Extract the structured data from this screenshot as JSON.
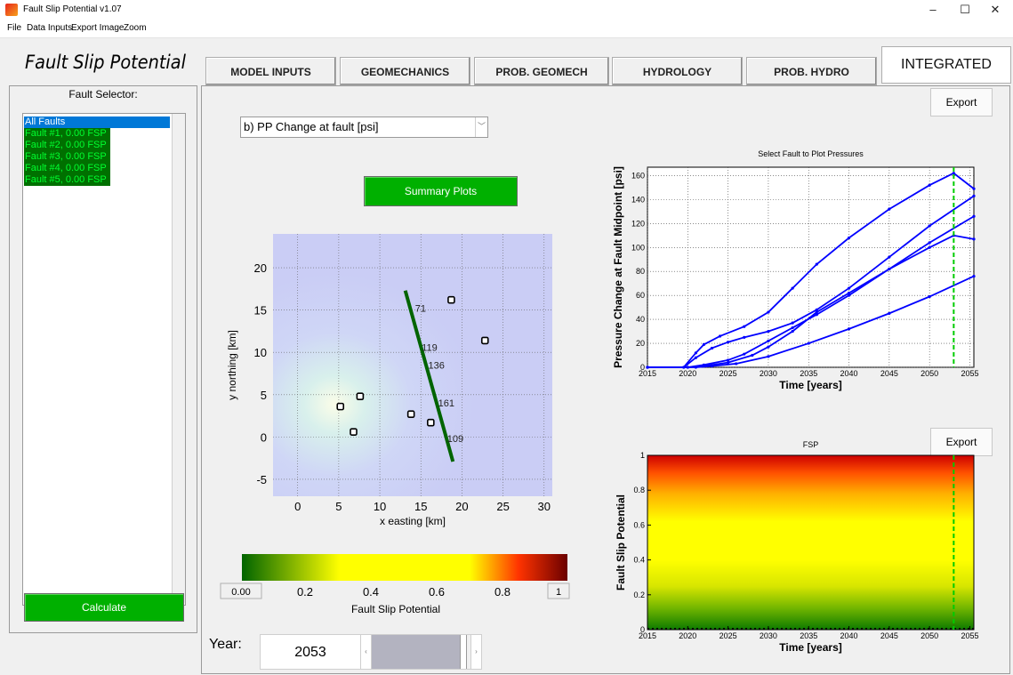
{
  "window": {
    "title": "Fault Slip Potential v1.07",
    "minimize": "–",
    "maximize": "☐",
    "close": "✕"
  },
  "menu": [
    "File",
    "Data Inputs",
    "Export Image",
    "Zoom"
  ],
  "app_title": "Fault Slip Potential",
  "tabs": [
    "MODEL INPUTS",
    "GEOMECHANICS",
    "PROB. GEOMECH",
    "HYDROLOGY",
    "PROB. HYDRO",
    "INTEGRATED"
  ],
  "fault_selector": {
    "title": "Fault Selector:",
    "items": [
      "All Faults",
      "Fault #1, 0.00 FSP",
      "Fault #2, 0.00 FSP",
      "Fault #3, 0.00 FSP",
      "Fault #4, 0.00 FSP",
      "Fault #5, 0.00 FSP"
    ],
    "selected": "All Faults"
  },
  "calculate_label": "Calculate",
  "dropdown": {
    "value": "b) PP Change at fault [psi]"
  },
  "summary_plots_label": "Summary Plots",
  "export_label": "Export",
  "year": {
    "label": "Year:",
    "value": "2053",
    "slider_fraction": 0.96
  },
  "colors": {
    "green_button": "#00b000",
    "selection": "#0078d7",
    "fault_item_bg": "#007000",
    "plot_line": "#0000ff",
    "marker_line": "#00cc00",
    "fault_line": "#006400"
  },
  "chart_data": [
    {
      "type": "scatter",
      "name": "map",
      "xlabel": "x easting [km]",
      "ylabel": "y northing [km]",
      "xlim": [
        -3,
        31
      ],
      "ylim": [
        -7,
        24
      ],
      "xticks": [
        0,
        5,
        10,
        15,
        20,
        25,
        30
      ],
      "yticks": [
        -5,
        0,
        5,
        10,
        15,
        20
      ],
      "wells": [
        [
          5.2,
          3.6
        ],
        [
          7.6,
          4.8
        ],
        [
          6.8,
          0.6
        ],
        [
          13.8,
          2.7
        ],
        [
          16.2,
          1.7
        ],
        [
          18.7,
          16.2
        ],
        [
          22.8,
          11.4
        ]
      ],
      "fault": [
        [
          13.1,
          17.3
        ],
        [
          18.9,
          -2.9
        ]
      ],
      "fault_labels": [
        {
          "text": "71",
          "x": 14.3,
          "y": 14.8
        },
        {
          "text": "119",
          "x": 15.1,
          "y": 10.2
        },
        {
          "text": "136",
          "x": 15.9,
          "y": 8.1
        },
        {
          "text": "161",
          "x": 17.1,
          "y": 3.6
        },
        {
          "text": "109",
          "x": 18.2,
          "y": -0.6
        }
      ]
    },
    {
      "type": "line",
      "name": "pressure",
      "title": "Select Fault to Plot Pressures",
      "xlabel": "Time [years]",
      "ylabel": "Pressure Change at Fault Midpoint [psi]",
      "xlim": [
        2015,
        2055.5
      ],
      "ylim": [
        0,
        167
      ],
      "xticks": [
        2015,
        2020,
        2025,
        2030,
        2035,
        2040,
        2045,
        2050,
        2055
      ],
      "yticks": [
        0,
        20,
        40,
        60,
        80,
        100,
        120,
        140,
        160
      ],
      "marker_year": 2053,
      "series": [
        {
          "x": [
            2015,
            2019.5,
            2021,
            2022,
            2024,
            2027,
            2030,
            2033,
            2036,
            2040,
            2045,
            2050,
            2053,
            2055.5
          ],
          "y": [
            0,
            0,
            12,
            19,
            26,
            34,
            46,
            66,
            86,
            108,
            132,
            152,
            162,
            149
          ]
        },
        {
          "x": [
            2015,
            2019.5,
            2021,
            2023,
            2025,
            2027,
            2030,
            2033,
            2036,
            2040,
            2045,
            2050,
            2055.5
          ],
          "y": [
            0,
            0,
            8,
            16,
            21,
            25,
            30,
            37,
            48,
            66,
            92,
            118,
            143
          ]
        },
        {
          "x": [
            2015,
            2020,
            2022,
            2025,
            2027,
            2030,
            2033,
            2036,
            2040,
            2045,
            2050,
            2055.5
          ],
          "y": [
            0,
            0,
            2,
            6,
            11,
            22,
            33,
            44,
            60,
            82,
            104,
            126
          ]
        },
        {
          "x": [
            2015,
            2020,
            2022,
            2025,
            2028,
            2030,
            2033,
            2036,
            2040,
            2045,
            2050,
            2053,
            2055.5
          ],
          "y": [
            0,
            0,
            1,
            4,
            10,
            17,
            30,
            46,
            62,
            82,
            100,
            110,
            107
          ]
        },
        {
          "x": [
            2015,
            2021,
            2023,
            2026,
            2030,
            2035,
            2040,
            2045,
            2050,
            2055.5
          ],
          "y": [
            0,
            0,
            1,
            3,
            9,
            20,
            32,
            45,
            59,
            76
          ]
        }
      ]
    },
    {
      "type": "heatmap",
      "name": "fsp",
      "title": "FSP",
      "xlabel": "Time [years]",
      "ylabel": "Fault Slip Potential",
      "xlim": [
        2015,
        2055.5
      ],
      "ylim": [
        0,
        1
      ],
      "xticks": [
        2015,
        2020,
        2025,
        2030,
        2035,
        2040,
        2045,
        2050,
        2055
      ],
      "yticks": [
        0,
        0.2,
        0.4,
        0.6,
        0.8,
        1
      ],
      "marker_year": 2053
    },
    {
      "type": "colorbar",
      "name": "fsp-colorbar",
      "label": "Fault Slip Potential",
      "min_label": "0.00",
      "max_label": "1",
      "ticks": [
        "0.2",
        "0.4",
        "0.6",
        "0.8"
      ]
    }
  ]
}
